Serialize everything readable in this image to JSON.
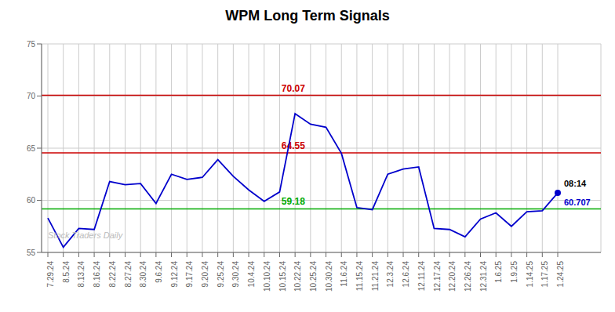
{
  "chart_data": {
    "type": "line",
    "title": "WPM Long Term Signals",
    "categories": [
      "7.29.24",
      "8.5.24",
      "8.13.24",
      "8.16.24",
      "8.22.24",
      "8.27.24",
      "8.30.24",
      "9.6.24",
      "9.12.24",
      "9.17.24",
      "9.20.24",
      "9.25.24",
      "9.30.24",
      "10.4.24",
      "10.10.24",
      "10.15.24",
      "10.22.24",
      "10.25.24",
      "10.30.24",
      "11.6.24",
      "11.15.24",
      "11.21.24",
      "12.3.24",
      "12.6.24",
      "12.11.24",
      "12.17.24",
      "12.20.24",
      "12.26.24",
      "12.31.24",
      "1.6.25",
      "1.9.25",
      "1.14.25",
      "1.17.25",
      "1.24.25"
    ],
    "values": [
      58.3,
      55.5,
      57.3,
      57.2,
      61.8,
      61.5,
      61.6,
      59.7,
      62.5,
      62.0,
      62.2,
      63.9,
      62.3,
      61.0,
      59.9,
      60.8,
      68.3,
      67.3,
      67.0,
      64.5,
      59.3,
      59.1,
      62.5,
      63.0,
      63.2,
      57.3,
      57.2,
      56.5,
      58.2,
      58.8,
      57.5,
      58.9,
      59.0,
      60.707
    ],
    "color": "#0000cc",
    "ylim": [
      55,
      75
    ],
    "yticks": [
      55,
      60,
      65,
      70,
      75
    ],
    "grid": true,
    "reference_lines": [
      {
        "value": 70.07,
        "label": "70.07",
        "color": "#cc0000"
      },
      {
        "value": 64.55,
        "label": "64.55",
        "color": "#cc0000"
      },
      {
        "value": 59.18,
        "label": "59.18",
        "color": "#00aa00"
      }
    ],
    "last_point": {
      "time_label": "08:14",
      "value_label": "60.707"
    },
    "watermark": "Stock Traders Daily",
    "watermark_color": "#bbbbbb"
  }
}
